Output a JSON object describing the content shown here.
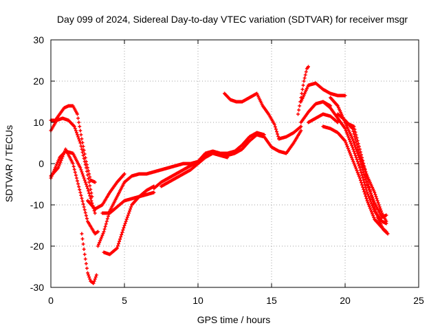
{
  "chart_data": {
    "type": "scatter",
    "title": "Day 099 of 2024, Sidereal Day-to-day VTEC variation (SDTVAR) for receiver msgr",
    "xlabel": "GPS time / hours",
    "ylabel": "SDTVAR / TECUs",
    "xlim": [
      0,
      25
    ],
    "ylim": [
      -30,
      30
    ],
    "xticks": [
      0,
      5,
      10,
      15,
      20,
      25
    ],
    "yticks": [
      -30,
      -20,
      -10,
      0,
      10,
      20,
      30
    ],
    "grid": true,
    "marker": "plus",
    "color": "#ff0000",
    "series": [
      {
        "x": [
          0.0,
          0.3,
          0.6,
          1.0,
          1.5,
          2.0,
          2.5,
          3.0
        ],
        "y": [
          -3.5,
          -1.0,
          1.5,
          3.0,
          2.5,
          -1.0,
          -6.0,
          -12.0
        ]
      },
      {
        "x": [
          0.0,
          0.4,
          0.8,
          1.2,
          1.6,
          2.0,
          2.4,
          2.8
        ],
        "y": [
          8.0,
          10.5,
          11.0,
          10.5,
          9.0,
          5.0,
          -1.0,
          -8.0
        ]
      },
      {
        "x": [
          0.0,
          0.3,
          0.6,
          0.9,
          1.2,
          1.5,
          1.8,
          2.1,
          2.4,
          2.7,
          3.0
        ],
        "y": [
          10.5,
          10.5,
          12.0,
          13.5,
          14.0,
          14.0,
          12.0,
          6.0,
          0.5,
          -4.0,
          -4.5
        ]
      },
      {
        "x": [
          0.0,
          0.5,
          1.0,
          1.5,
          2.0,
          2.5,
          3.0,
          3.2
        ],
        "y": [
          -3.0,
          -1.0,
          3.5,
          0.0,
          -7.0,
          -14.0,
          -17.0,
          -16.5
        ]
      },
      {
        "x": [
          2.1,
          2.3,
          2.5,
          2.7,
          2.9,
          3.1
        ],
        "y": [
          -17.0,
          -22.0,
          -26.5,
          -28.5,
          -29.0,
          -27.0
        ]
      },
      {
        "x": [
          2.5,
          3.0,
          3.5,
          4.0,
          4.5,
          5.0
        ],
        "y": [
          -9.0,
          -11.0,
          -10.0,
          -7.0,
          -4.5,
          -2.5
        ]
      },
      {
        "x": [
          3.2,
          3.6,
          4.0,
          4.5,
          5.0,
          5.5,
          6.0,
          6.5,
          7.0
        ],
        "y": [
          -20.0,
          -16.5,
          -11.5,
          -8.0,
          -4.5,
          -3.0,
          -2.5,
          -2.5,
          -2.0
        ]
      },
      {
        "x": [
          3.6,
          4.0,
          4.5,
          5.0,
          5.5,
          6.0,
          6.5,
          7.0
        ],
        "y": [
          -21.5,
          -22.0,
          -20.5,
          -15.0,
          -10.0,
          -8.0,
          -7.5,
          -7.0
        ]
      },
      {
        "x": [
          3.5,
          4.0,
          4.5,
          5.0,
          5.5,
          6.0,
          6.5,
          7.0
        ],
        "y": [
          -12.0,
          -12.0,
          -10.5,
          -9.0,
          -8.5,
          -8.0,
          -6.5,
          -5.5
        ]
      },
      {
        "x": [
          7.0,
          7.5,
          8.0,
          8.5,
          9.0,
          9.5,
          10.0,
          10.5,
          11.0,
          11.5,
          12.0,
          12.5,
          13.0,
          13.5,
          14.0,
          14.5,
          15.0,
          15.5,
          16.0,
          16.5,
          17.0
        ],
        "y": [
          -6.0,
          -4.5,
          -3.5,
          -2.5,
          -1.5,
          -0.5,
          0.5,
          2.0,
          3.0,
          2.5,
          2.0,
          2.5,
          3.5,
          5.5,
          7.0,
          6.5,
          4.0,
          3.0,
          2.5,
          5.0,
          8.0
        ]
      },
      {
        "x": [
          7.0,
          7.5,
          8.0,
          8.5,
          9.0,
          9.5,
          10.0,
          10.5,
          11.0,
          11.5,
          12.0,
          12.5,
          13.0,
          13.5,
          14.0,
          14.5
        ],
        "y": [
          -2.0,
          -1.5,
          -1.0,
          -0.5,
          0.0,
          0.0,
          0.5,
          2.5,
          3.0,
          2.5,
          2.5,
          3.0,
          4.5,
          6.5,
          7.5,
          7.0
        ]
      },
      {
        "x": [
          7.5,
          8.0,
          8.5,
          9.0,
          9.5,
          10.0,
          10.5,
          11.0,
          11.5,
          12.0
        ],
        "y": [
          -5.5,
          -4.5,
          -3.5,
          -2.5,
          -1.5,
          0.0,
          1.5,
          2.5,
          2.0,
          1.5
        ]
      },
      {
        "x": [
          11.8,
          12.2,
          12.6,
          13.0,
          13.5,
          14.0,
          14.4,
          14.8,
          15.2,
          15.5
        ],
        "y": [
          17.0,
          15.5,
          15.0,
          15.0,
          16.0,
          17.0,
          14.0,
          12.0,
          9.5,
          6.0
        ]
      },
      {
        "x": [
          15.5,
          16.0,
          16.5,
          17.0
        ],
        "y": [
          6.0,
          6.5,
          7.5,
          9.0
        ]
      },
      {
        "x": [
          16.8,
          17.0,
          17.2,
          17.4,
          17.5
        ],
        "y": [
          12.0,
          16.0,
          20.0,
          23.0,
          23.5
        ]
      },
      {
        "x": [
          17.0,
          17.5,
          18.0,
          18.5,
          19.0,
          19.5,
          20.0
        ],
        "y": [
          15.0,
          19.0,
          19.5,
          18.0,
          17.0,
          16.5,
          16.5
        ]
      },
      {
        "x": [
          17.0,
          17.5,
          18.0,
          18.5,
          19.0
        ],
        "y": [
          10.0,
          12.5,
          14.5,
          15.0,
          14.0
        ]
      },
      {
        "x": [
          17.5,
          18.0,
          18.5,
          19.0,
          19.5
        ],
        "y": [
          10.0,
          11.0,
          12.0,
          11.5,
          10.0
        ]
      },
      {
        "x": [
          18.5,
          19.0,
          19.5,
          20.0,
          20.5,
          21.0,
          21.5,
          22.0,
          22.5,
          22.8
        ],
        "y": [
          15.0,
          13.5,
          11.0,
          8.5,
          4.0,
          -1.0,
          -7.0,
          -11.5,
          -14.0,
          -14.5
        ]
      },
      {
        "x": [
          18.5,
          19.0,
          19.5,
          20.0,
          20.5,
          21.0,
          21.5,
          22.0,
          22.5,
          22.8
        ],
        "y": [
          9.0,
          8.5,
          7.5,
          5.5,
          1.0,
          -3.5,
          -9.0,
          -13.5,
          -15.5,
          -16.5
        ]
      },
      {
        "x": [
          19.0,
          19.5,
          20.0,
          20.5,
          21.0,
          21.5,
          22.0,
          22.5,
          22.8
        ],
        "y": [
          16.0,
          14.0,
          10.0,
          6.0,
          1.0,
          -5.0,
          -9.5,
          -13.0,
          -12.5
        ]
      },
      {
        "x": [
          19.5,
          20.0,
          20.5,
          21.0,
          21.5,
          22.0,
          22.5,
          22.8
        ],
        "y": [
          12.0,
          10.5,
          8.5,
          2.0,
          -3.0,
          -7.0,
          -12.0,
          -14.0
        ]
      },
      {
        "x": [
          20.0,
          20.3,
          20.6,
          21.0,
          21.4,
          21.8,
          22.2,
          22.6,
          22.9
        ],
        "y": [
          10.0,
          9.5,
          9.0,
          3.5,
          -2.0,
          -8.0,
          -13.0,
          -16.0,
          -17.0
        ]
      }
    ]
  }
}
